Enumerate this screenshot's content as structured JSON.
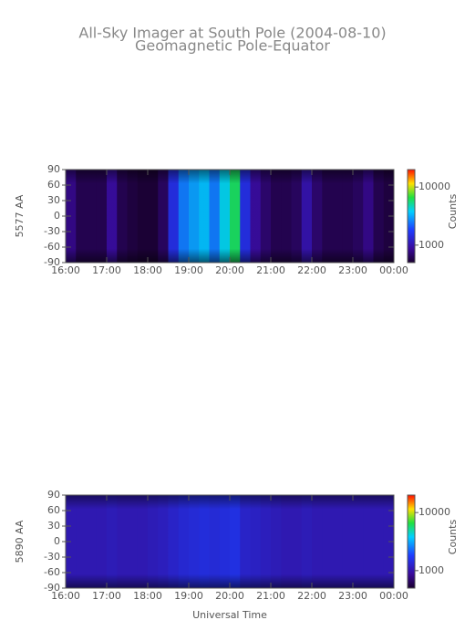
{
  "chart_data": [
    {
      "type": "heatmap",
      "title": "All-Sky Imager at South Pole (2004-08-10)",
      "subtitle": "Geomagnetic Pole-Equator",
      "ylabel": "5577 AA",
      "colorbar_label": "Counts",
      "log_color": true,
      "x": [
        16.125,
        16.375,
        16.625,
        16.875,
        17.125,
        17.375,
        17.625,
        17.875,
        18.125,
        18.375,
        18.625,
        18.875,
        19.125,
        19.375,
        19.625,
        19.875,
        20.125,
        20.375,
        20.625,
        20.875,
        21.125,
        21.375,
        21.625,
        21.875,
        22.125,
        22.375,
        22.625,
        22.875,
        23.125,
        23.375,
        23.625,
        23.875
      ],
      "values": [
        800,
        600,
        600,
        600,
        900,
        600,
        550,
        520,
        520,
        650,
        1500,
        2500,
        3000,
        3500,
        2500,
        4000,
        6000,
        1500,
        900,
        700,
        600,
        600,
        650,
        1000,
        700,
        600,
        600,
        600,
        650,
        800,
        600,
        550
      ],
      "xlim": [
        16,
        24
      ],
      "ylim": [
        -90,
        90
      ],
      "xticks": [
        {
          "value": 16,
          "label": "16:00"
        },
        {
          "value": 17,
          "label": "17:00"
        },
        {
          "value": 18,
          "label": "18:00"
        },
        {
          "value": 19,
          "label": "19:00"
        },
        {
          "value": 20,
          "label": "20:00"
        },
        {
          "value": 21,
          "label": "21:00"
        },
        {
          "value": 22,
          "label": "22:00"
        },
        {
          "value": 23,
          "label": "23:00"
        },
        {
          "value": 24,
          "label": "00:00"
        }
      ],
      "yticks": [
        90,
        60,
        30,
        0,
        -30,
        -60,
        -90
      ],
      "clim": [
        500,
        20000
      ],
      "cticks": [
        1000,
        10000
      ]
    },
    {
      "type": "heatmap",
      "ylabel": "5890 AA",
      "xlabel": "Universal Time",
      "colorbar_label": "Counts",
      "log_color": true,
      "x": [
        16.125,
        16.375,
        16.625,
        16.875,
        17.125,
        17.375,
        17.625,
        17.875,
        18.125,
        18.375,
        18.625,
        18.875,
        19.125,
        19.375,
        19.625,
        19.875,
        20.125,
        20.375,
        20.625,
        20.875,
        21.125,
        21.375,
        21.625,
        21.875,
        22.125,
        22.375,
        22.625,
        22.875,
        23.125,
        23.375,
        23.625,
        23.875
      ],
      "values": [
        1100,
        1100,
        1100,
        1100,
        1150,
        1100,
        1100,
        1100,
        1150,
        1200,
        1300,
        1400,
        1450,
        1500,
        1450,
        1500,
        1600,
        1300,
        1250,
        1200,
        1150,
        1100,
        1100,
        1150,
        1100,
        1100,
        1100,
        1100,
        1100,
        1100,
        1100,
        1100
      ],
      "xlim": [
        16,
        24
      ],
      "ylim": [
        -90,
        90
      ],
      "xticks": [
        {
          "value": 16,
          "label": "16:00"
        },
        {
          "value": 17,
          "label": "17:00"
        },
        {
          "value": 18,
          "label": "18:00"
        },
        {
          "value": 19,
          "label": "19:00"
        },
        {
          "value": 20,
          "label": "20:00"
        },
        {
          "value": 21,
          "label": "21:00"
        },
        {
          "value": 22,
          "label": "22:00"
        },
        {
          "value": 23,
          "label": "23:00"
        },
        {
          "value": 24,
          "label": "00:00"
        }
      ],
      "yticks": [
        90,
        60,
        30,
        0,
        -30,
        -60,
        -90
      ],
      "clim": [
        500,
        20000
      ],
      "cticks": [
        1000,
        10000
      ]
    }
  ]
}
